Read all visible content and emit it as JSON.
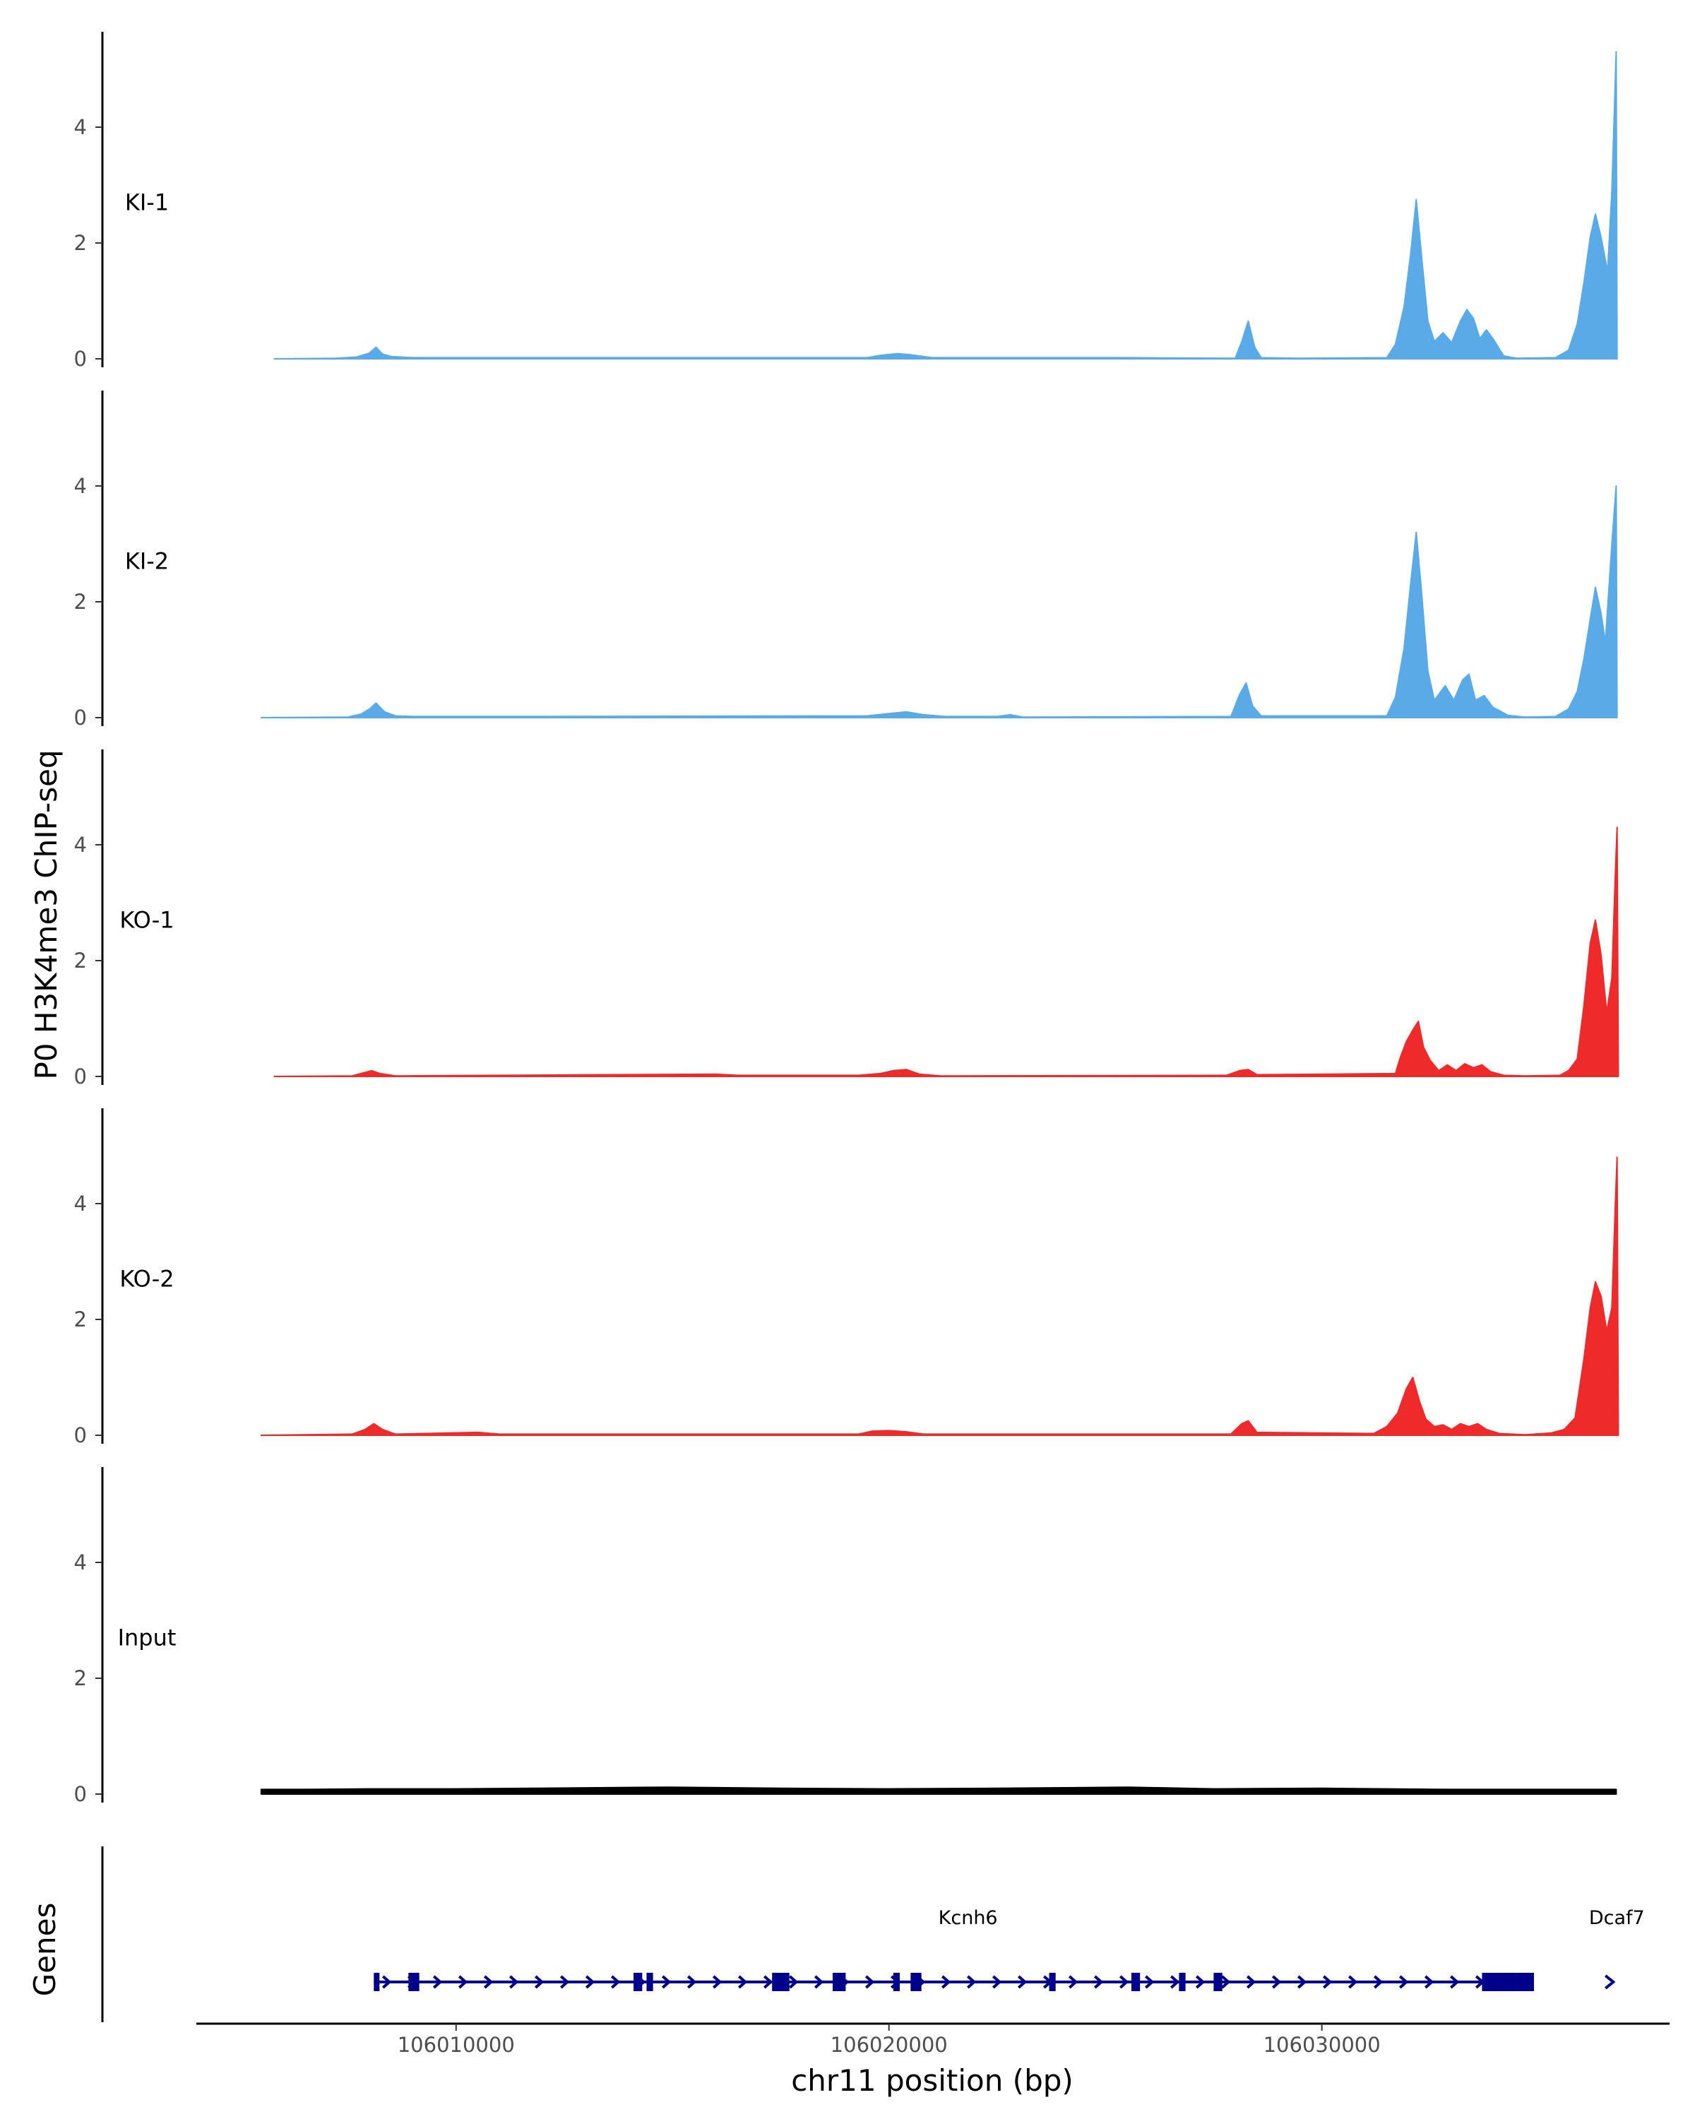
{
  "chart_data": {
    "type": "area",
    "title": "",
    "ylabel": "P0 H3K4me3 ChIP-seq",
    "xlabel": "chr11 position (bp)",
    "genes_label": "Genes",
    "xlim": [
      106004000,
      106038000
    ],
    "x_ticks": [
      106010000,
      106020000,
      106030000
    ],
    "x_tick_labels": [
      "106010000",
      "106020000",
      "106030000"
    ],
    "ylim": [
      0,
      5.4
    ],
    "y_ticks": [
      0,
      2,
      4
    ],
    "y_tick_labels": [
      "0",
      "2",
      "4"
    ],
    "colors": {
      "KI": "#5aaae8",
      "KO": "#ee2a2a",
      "Input": "#000000",
      "gene": "#00008b",
      "axis": "#000000"
    },
    "series": [
      {
        "name": "KI-1",
        "group": "KI",
        "points": [
          [
            106005800,
            0
          ],
          [
            106007200,
            0.01
          ],
          [
            106007700,
            0.03
          ],
          [
            106008000,
            0.1
          ],
          [
            106008150,
            0.2
          ],
          [
            106008300,
            0.08
          ],
          [
            106008500,
            0.04
          ],
          [
            106009000,
            0.02
          ],
          [
            106012000,
            0.02
          ],
          [
            106019500,
            0.02
          ],
          [
            106019800,
            0.06
          ],
          [
            106020200,
            0.09
          ],
          [
            106020500,
            0.07
          ],
          [
            106021000,
            0.02
          ],
          [
            106025500,
            0.02
          ],
          [
            106028000,
            0.01
          ],
          [
            106028150,
            0.3
          ],
          [
            106028300,
            0.65
          ],
          [
            106028450,
            0.2
          ],
          [
            106028600,
            0.02
          ],
          [
            106029500,
            0.01
          ],
          [
            106031500,
            0.02
          ],
          [
            106031700,
            0.25
          ],
          [
            106031900,
            0.9
          ],
          [
            106032050,
            1.8
          ],
          [
            106032180,
            2.75
          ],
          [
            106032300,
            1.8
          ],
          [
            106032450,
            0.65
          ],
          [
            106032600,
            0.3
          ],
          [
            106032800,
            0.45
          ],
          [
            106033000,
            0.28
          ],
          [
            106033200,
            0.65
          ],
          [
            106033350,
            0.85
          ],
          [
            106033500,
            0.7
          ],
          [
            106033650,
            0.35
          ],
          [
            106033800,
            0.5
          ],
          [
            106033950,
            0.35
          ],
          [
            106034200,
            0.05
          ],
          [
            106034500,
            0.01
          ],
          [
            106035400,
            0.02
          ],
          [
            106035700,
            0.15
          ],
          [
            106035900,
            0.6
          ],
          [
            106036050,
            1.3
          ],
          [
            106036200,
            2.1
          ],
          [
            106036320,
            2.5
          ],
          [
            106036450,
            2.1
          ],
          [
            106036600,
            1.5
          ],
          [
            106036700,
            2.9
          ],
          [
            106036800,
            5.3
          ],
          [
            106036820,
            0
          ]
        ]
      },
      {
        "name": "KI-2",
        "group": "KI",
        "points": [
          [
            106005500,
            0
          ],
          [
            106007500,
            0.01
          ],
          [
            106007800,
            0.06
          ],
          [
            106008000,
            0.15
          ],
          [
            106008150,
            0.25
          ],
          [
            106008350,
            0.1
          ],
          [
            106008600,
            0.03
          ],
          [
            106009000,
            0.02
          ],
          [
            106012000,
            0.02
          ],
          [
            106019500,
            0.03
          ],
          [
            106020000,
            0.07
          ],
          [
            106020400,
            0.1
          ],
          [
            106020800,
            0.05
          ],
          [
            106021300,
            0.02
          ],
          [
            106022500,
            0.02
          ],
          [
            106022800,
            0.05
          ],
          [
            106023100,
            0.01
          ],
          [
            106027900,
            0.02
          ],
          [
            106028100,
            0.4
          ],
          [
            106028250,
            0.6
          ],
          [
            106028400,
            0.2
          ],
          [
            106028600,
            0.03
          ],
          [
            106031500,
            0.03
          ],
          [
            106031700,
            0.35
          ],
          [
            106031900,
            1.2
          ],
          [
            106032050,
            2.3
          ],
          [
            106032180,
            3.2
          ],
          [
            106032300,
            2.2
          ],
          [
            106032450,
            0.8
          ],
          [
            106032600,
            0.3
          ],
          [
            106032850,
            0.55
          ],
          [
            106033050,
            0.3
          ],
          [
            106033250,
            0.65
          ],
          [
            106033400,
            0.75
          ],
          [
            106033550,
            0.3
          ],
          [
            106033750,
            0.38
          ],
          [
            106033950,
            0.18
          ],
          [
            106034300,
            0.04
          ],
          [
            106034700,
            0.01
          ],
          [
            106035400,
            0.02
          ],
          [
            106035700,
            0.15
          ],
          [
            106035900,
            0.45
          ],
          [
            106036050,
            1.0
          ],
          [
            106036200,
            1.7
          ],
          [
            106036320,
            2.25
          ],
          [
            106036450,
            1.8
          ],
          [
            106036550,
            1.3
          ],
          [
            106036700,
            3.0
          ],
          [
            106036800,
            4.0
          ],
          [
            106036820,
            0
          ]
        ]
      },
      {
        "name": "KO-1",
        "group": "KO",
        "points": [
          [
            106005800,
            0
          ],
          [
            106007600,
            0.01
          ],
          [
            106007850,
            0.06
          ],
          [
            106008050,
            0.1
          ],
          [
            106008250,
            0.05
          ],
          [
            106008600,
            0.01
          ],
          [
            106011000,
            0.02
          ],
          [
            106016000,
            0.04
          ],
          [
            106016500,
            0.02
          ],
          [
            106019300,
            0.02
          ],
          [
            106019800,
            0.05
          ],
          [
            106020100,
            0.1
          ],
          [
            106020400,
            0.12
          ],
          [
            106020700,
            0.04
          ],
          [
            106021200,
            0.01
          ],
          [
            106027800,
            0.02
          ],
          [
            106028100,
            0.1
          ],
          [
            106028300,
            0.12
          ],
          [
            106028500,
            0.03
          ],
          [
            106031700,
            0.05
          ],
          [
            106031800,
            0.3
          ],
          [
            106031950,
            0.6
          ],
          [
            106032100,
            0.8
          ],
          [
            106032230,
            0.95
          ],
          [
            106032350,
            0.5
          ],
          [
            106032500,
            0.28
          ],
          [
            106032700,
            0.1
          ],
          [
            106032900,
            0.2
          ],
          [
            106033100,
            0.1
          ],
          [
            106033300,
            0.22
          ],
          [
            106033500,
            0.15
          ],
          [
            106033700,
            0.2
          ],
          [
            106033900,
            0.08
          ],
          [
            106034200,
            0.02
          ],
          [
            106034700,
            0.01
          ],
          [
            106035500,
            0.02
          ],
          [
            106035700,
            0.1
          ],
          [
            106035900,
            0.3
          ],
          [
            106036050,
            1.2
          ],
          [
            106036200,
            2.3
          ],
          [
            106036320,
            2.7
          ],
          [
            106036450,
            2.1
          ],
          [
            106036580,
            1.1
          ],
          [
            106036700,
            1.7
          ],
          [
            106036780,
            3.5
          ],
          [
            106036820,
            4.3
          ],
          [
            106036850,
            0
          ]
        ]
      },
      {
        "name": "KO-2",
        "group": "KO",
        "points": [
          [
            106005500,
            0
          ],
          [
            106007600,
            0.02
          ],
          [
            106007900,
            0.1
          ],
          [
            106008100,
            0.2
          ],
          [
            106008300,
            0.1
          ],
          [
            106008600,
            0.02
          ],
          [
            106010500,
            0.05
          ],
          [
            106011000,
            0.02
          ],
          [
            106019300,
            0.02
          ],
          [
            106019600,
            0.07
          ],
          [
            106020000,
            0.08
          ],
          [
            106020400,
            0.06
          ],
          [
            106020800,
            0.02
          ],
          [
            106027900,
            0.02
          ],
          [
            106028150,
            0.2
          ],
          [
            106028300,
            0.25
          ],
          [
            106028500,
            0.05
          ],
          [
            106031200,
            0.03
          ],
          [
            106031500,
            0.15
          ],
          [
            106031750,
            0.38
          ],
          [
            106031950,
            0.8
          ],
          [
            106032100,
            1.0
          ],
          [
            106032250,
            0.6
          ],
          [
            106032400,
            0.28
          ],
          [
            106032600,
            0.15
          ],
          [
            106032800,
            0.18
          ],
          [
            106033000,
            0.1
          ],
          [
            106033200,
            0.2
          ],
          [
            106033400,
            0.15
          ],
          [
            106033600,
            0.2
          ],
          [
            106033800,
            0.1
          ],
          [
            106034100,
            0.03
          ],
          [
            106034700,
            0.01
          ],
          [
            106035300,
            0.04
          ],
          [
            106035600,
            0.1
          ],
          [
            106035850,
            0.3
          ],
          [
            106036050,
            1.3
          ],
          [
            106036200,
            2.2
          ],
          [
            106036320,
            2.65
          ],
          [
            106036450,
            2.4
          ],
          [
            106036580,
            1.8
          ],
          [
            106036700,
            2.2
          ],
          [
            106036780,
            4.0
          ],
          [
            106036820,
            4.8
          ],
          [
            106036850,
            0
          ]
        ]
      },
      {
        "name": "Input",
        "group": "Input",
        "points": [
          [
            106005500,
            0.08
          ],
          [
            106006500,
            0.08
          ],
          [
            106008000,
            0.09
          ],
          [
            106010000,
            0.09
          ],
          [
            106011800,
            0.1
          ],
          [
            106014900,
            0.12
          ],
          [
            106017500,
            0.1
          ],
          [
            106020000,
            0.09
          ],
          [
            106022500,
            0.1
          ],
          [
            106025500,
            0.12
          ],
          [
            106027500,
            0.09
          ],
          [
            106030000,
            0.1
          ],
          [
            106033000,
            0.08
          ],
          [
            106034800,
            0.08
          ],
          [
            106036800,
            0.08
          ]
        ]
      }
    ],
    "genes": [
      {
        "name": "Kcnh6",
        "strand": "+",
        "start": 106008100,
        "end": 106034900,
        "exons": [
          [
            106008100,
            106008220
          ],
          [
            106008900,
            106009150
          ],
          [
            106014100,
            106014300
          ],
          [
            106014400,
            106014550
          ],
          [
            106017300,
            106017700
          ],
          [
            106018700,
            106019000
          ],
          [
            106020100,
            106020250
          ],
          [
            106020500,
            106020750
          ],
          [
            106023700,
            106023850
          ],
          [
            106025600,
            106025800
          ],
          [
            106026700,
            106026850
          ],
          [
            106027500,
            106027700
          ],
          [
            106033700,
            106034500
          ],
          [
            106034500,
            106034900
          ]
        ]
      },
      {
        "name": "Dcaf7",
        "strand": "+",
        "start": 106036500,
        "end": 106036800,
        "exons": []
      }
    ]
  }
}
